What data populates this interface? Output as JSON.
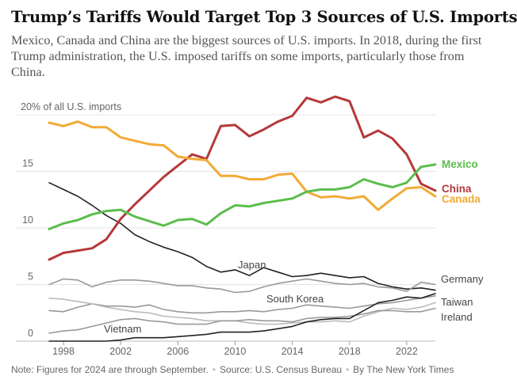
{
  "header": {
    "title": "Trump’s Tariffs Would Target Top 3 Sources of U.S. Imports",
    "subtitle": "Mexico, Canada and China are the biggest sources of U.S. imports. In 2018, during the first Trump administration, the U.S. imposed tariffs on some imports, particularly those from China."
  },
  "footer": {
    "note": "Note: Figures for 2024 are through September.",
    "source": "Source: U.S. Census Bureau",
    "credit": "By The New York Times",
    "separator": "•"
  },
  "chart_data": {
    "type": "line",
    "title": "",
    "xlabel": "",
    "ylabel": "",
    "y_unit_label": "20% of all U.S. imports",
    "xlim": [
      1997,
      2024
    ],
    "ylim": [
      0,
      20
    ],
    "x_ticks": [
      "1998",
      "2002",
      "2006",
      "2010",
      "2014",
      "2018",
      "2022"
    ],
    "y_ticks": [
      "15",
      "10",
      "5",
      "0"
    ],
    "grid": true,
    "legend": "direct labels at line ends",
    "x": [
      1997,
      1998,
      1999,
      2000,
      2001,
      2002,
      2003,
      2004,
      2005,
      2006,
      2007,
      2008,
      2009,
      2010,
      2011,
      2012,
      2013,
      2014,
      2015,
      2016,
      2017,
      2018,
      2019,
      2020,
      2021,
      2022,
      2023,
      2024
    ],
    "series": [
      {
        "name": "China",
        "color": "#b5383a",
        "highlight": true,
        "values": [
          7.2,
          7.8,
          8.0,
          8.2,
          9.0,
          10.8,
          12.1,
          13.3,
          14.5,
          15.5,
          16.5,
          16.1,
          19.0,
          19.1,
          18.1,
          18.7,
          19.4,
          19.9,
          21.5,
          21.1,
          21.6,
          21.2,
          18.0,
          18.6,
          17.9,
          16.5,
          13.9,
          13.3
        ]
      },
      {
        "name": "Canada",
        "color": "#f2aa35",
        "highlight": true,
        "values": [
          19.3,
          19.0,
          19.4,
          18.9,
          18.9,
          18.0,
          17.7,
          17.4,
          17.3,
          16.3,
          16.1,
          16.0,
          14.6,
          14.6,
          14.3,
          14.3,
          14.7,
          14.8,
          13.2,
          12.7,
          12.8,
          12.6,
          12.8,
          11.6,
          12.6,
          13.5,
          13.6,
          12.8
        ]
      },
      {
        "name": "Mexico",
        "color": "#5bbd4c",
        "highlight": true,
        "values": [
          9.9,
          10.4,
          10.7,
          11.2,
          11.5,
          11.6,
          11.0,
          10.6,
          10.2,
          10.7,
          10.8,
          10.3,
          11.3,
          12.0,
          11.9,
          12.2,
          12.4,
          12.6,
          13.2,
          13.4,
          13.4,
          13.6,
          14.3,
          13.9,
          13.6,
          14.0,
          15.4,
          15.6
        ]
      },
      {
        "name": "Japan",
        "color": "#222222",
        "highlight": false,
        "values": [
          14.0,
          13.4,
          12.8,
          12.0,
          11.1,
          10.4,
          9.4,
          8.8,
          8.3,
          7.9,
          7.4,
          6.6,
          6.1,
          6.3,
          5.8,
          6.5,
          6.1,
          5.7,
          5.8,
          6.0,
          5.8,
          5.6,
          5.7,
          5.1,
          4.8,
          4.6,
          4.7,
          4.5
        ]
      },
      {
        "name": "Germany",
        "color": "#999999",
        "highlight": false,
        "values": [
          5.0,
          5.5,
          5.4,
          4.8,
          5.2,
          5.4,
          5.4,
          5.3,
          5.1,
          4.9,
          4.9,
          4.7,
          4.6,
          4.3,
          4.4,
          4.8,
          5.1,
          5.3,
          5.5,
          5.3,
          5.1,
          5.0,
          5.1,
          4.8,
          4.7,
          4.4,
          5.2,
          5.0
        ]
      },
      {
        "name": "South Korea",
        "color": "#999999",
        "highlight": false,
        "values": [
          2.7,
          2.6,
          3.0,
          3.3,
          3.1,
          3.1,
          3.0,
          3.2,
          2.8,
          2.6,
          2.5,
          2.5,
          2.6,
          2.6,
          2.7,
          2.6,
          2.8,
          2.9,
          3.2,
          3.1,
          3.0,
          2.9,
          3.1,
          3.3,
          3.4,
          3.6,
          3.8,
          4.0
        ]
      },
      {
        "name": "Taiwan",
        "color": "#bbbbbb",
        "highlight": false,
        "values": [
          3.8,
          3.7,
          3.5,
          3.3,
          3.0,
          2.8,
          2.6,
          2.5,
          2.2,
          2.1,
          2.0,
          1.8,
          1.8,
          1.8,
          1.6,
          1.5,
          1.5,
          1.6,
          1.7,
          1.7,
          1.8,
          1.7,
          2.2,
          2.6,
          2.9,
          2.8,
          3.0,
          3.4
        ]
      },
      {
        "name": "Ireland",
        "color": "#999999",
        "highlight": false,
        "values": [
          0.7,
          0.9,
          1.0,
          1.3,
          1.6,
          1.9,
          2.0,
          1.8,
          1.7,
          1.5,
          1.5,
          1.5,
          1.8,
          1.8,
          1.9,
          1.8,
          1.8,
          1.7,
          2.0,
          2.1,
          2.1,
          2.2,
          2.4,
          2.7,
          2.7,
          2.6,
          2.6,
          2.9
        ]
      },
      {
        "name": "Vietnam",
        "color": "#222222",
        "highlight": false,
        "values": [
          0.0,
          0.0,
          0.0,
          0.0,
          0.0,
          0.1,
          0.3,
          0.3,
          0.3,
          0.4,
          0.5,
          0.6,
          0.8,
          0.8,
          0.8,
          0.9,
          1.1,
          1.3,
          1.7,
          1.9,
          2.0,
          2.0,
          2.7,
          3.4,
          3.6,
          3.9,
          3.8,
          4.2
        ]
      }
    ]
  }
}
